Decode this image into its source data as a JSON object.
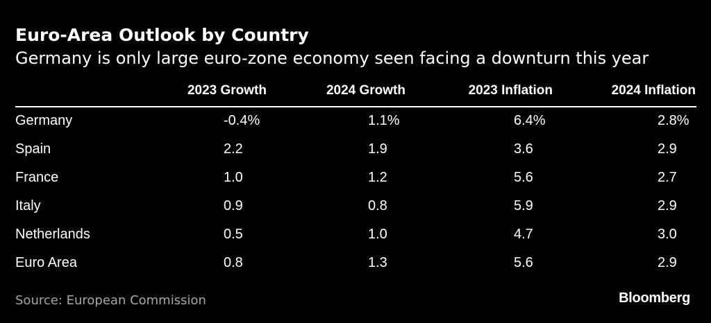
{
  "title": "Euro-Area Outlook by Country",
  "subtitle": "Germany is only large euro-zone economy seen facing a downturn this year",
  "source": "Source: European Commission",
  "brand": "Bloomberg",
  "colors": {
    "background": "#000000",
    "text": "#ffffff",
    "source_text": "#a6a6a6"
  },
  "chart_data": {
    "type": "table",
    "title": "Euro-Area Outlook by Country",
    "subtitle": "Germany is only large euro-zone economy seen facing a downturn this year",
    "columns": [
      "2023 Growth",
      "2024 Growth",
      "2023 Inflation",
      "2024 Inflation"
    ],
    "rows": [
      {
        "label": "Germany",
        "values": [
          "-0.4%",
          "1.1%",
          "6.4%",
          "2.8%"
        ]
      },
      {
        "label": "Spain",
        "values": [
          "2.2",
          "1.9",
          "3.6",
          "2.9"
        ]
      },
      {
        "label": "France",
        "values": [
          "1.0",
          "1.2",
          "5.6",
          "2.7"
        ]
      },
      {
        "label": "Italy",
        "values": [
          "0.9",
          "0.8",
          "5.9",
          "2.9"
        ]
      },
      {
        "label": "Netherlands",
        "values": [
          "0.5",
          "1.0",
          "4.7",
          "3.0"
        ]
      },
      {
        "label": "Euro Area",
        "values": [
          "0.8",
          "1.3",
          "5.6",
          "2.9"
        ]
      }
    ],
    "source": "Source: European Commission"
  }
}
